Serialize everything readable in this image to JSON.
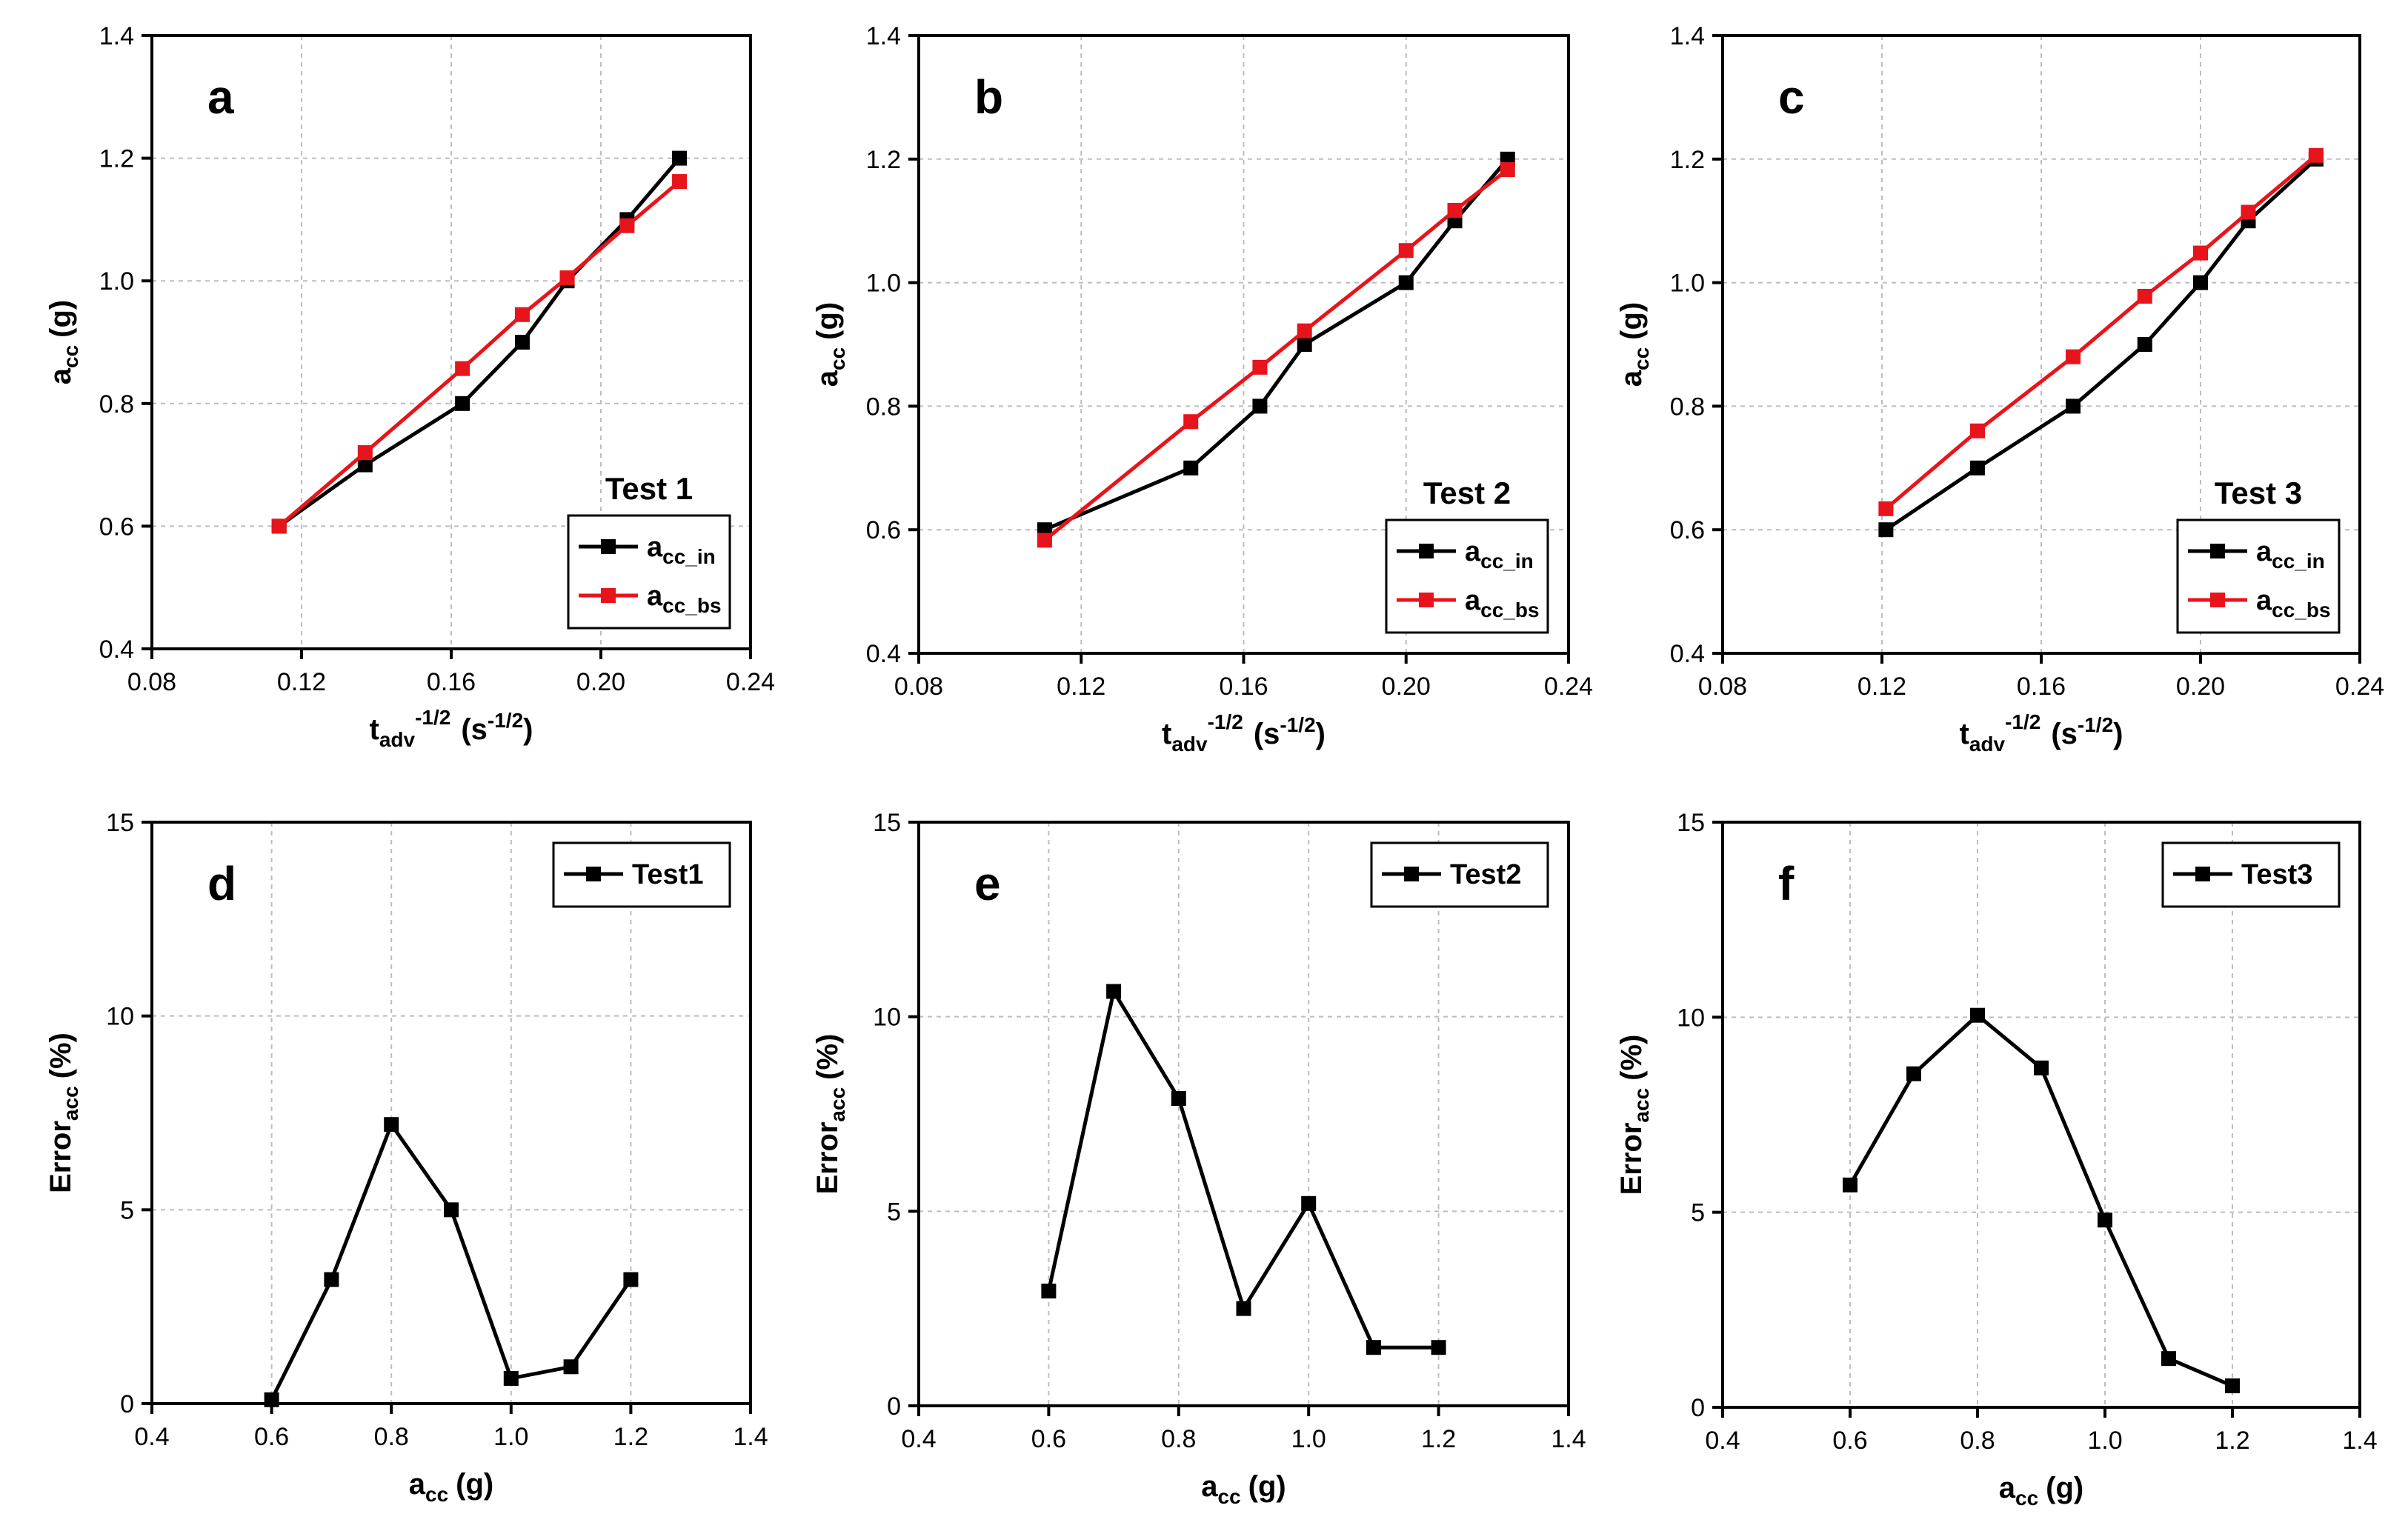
{
  "colors": {
    "series_in": "#000000",
    "series_bs": "#e8141b",
    "grid": "#bdbdbd",
    "axis": "#000000"
  },
  "chart_data": [
    {
      "id": "a",
      "type": "line",
      "panel_letter": "a",
      "annotation": "Test 1",
      "xlabel": "t",
      "xlabel_sub": "adv",
      "xlabel_sup": "-1/2",
      "xlabel_unit": "(s",
      "xlabel_unit_sup": "-1/2",
      "xlabel_unit_end": ")",
      "ylabel": "a",
      "ylabel_sub": "cc",
      "ylabel_unit": "(g)",
      "xlim": [
        0.08,
        0.24
      ],
      "ylim": [
        0.4,
        1.4
      ],
      "xticks": [
        "0.08",
        "0.12",
        "0.16",
        "0.20",
        "0.24"
      ],
      "yticks": [
        "0.4",
        "0.6",
        "0.8",
        "1.0",
        "1.2",
        "1.4"
      ],
      "grid": true,
      "legend_position": "bottom-right",
      "series": [
        {
          "name": "a",
          "name_sub": "cc_in",
          "color": "#000000",
          "x": [
            0.114,
            0.137,
            0.163,
            0.179,
            0.191,
            0.207,
            0.221
          ],
          "y": [
            0.6,
            0.7,
            0.8,
            0.9,
            1.0,
            1.1,
            1.2
          ]
        },
        {
          "name": "a",
          "name_sub": "cc_bs",
          "color": "#e8141b",
          "x": [
            0.114,
            0.137,
            0.163,
            0.179,
            0.191,
            0.207,
            0.221
          ],
          "y": [
            0.6,
            0.72,
            0.857,
            0.945,
            1.005,
            1.09,
            1.162
          ]
        }
      ]
    },
    {
      "id": "b",
      "type": "line",
      "panel_letter": "b",
      "annotation": "Test 2",
      "xlabel": "t",
      "xlabel_sub": "adv",
      "xlabel_sup": "-1/2",
      "xlabel_unit": "(s",
      "xlabel_unit_sup": "-1/2",
      "xlabel_unit_end": ")",
      "ylabel": "a",
      "ylabel_sub": "cc",
      "ylabel_unit": "(g)",
      "xlim": [
        0.08,
        0.24
      ],
      "ylim": [
        0.4,
        1.4
      ],
      "xticks": [
        "0.08",
        "0.12",
        "0.16",
        "0.20",
        "0.24"
      ],
      "yticks": [
        "0.4",
        "0.6",
        "0.8",
        "1.0",
        "1.2",
        "1.4"
      ],
      "grid": true,
      "legend_position": "bottom-right",
      "series": [
        {
          "name": "a",
          "name_sub": "cc_in",
          "color": "#000000",
          "x": [
            0.111,
            0.147,
            0.164,
            0.175,
            0.2,
            0.212,
            0.225
          ],
          "y": [
            0.6,
            0.7,
            0.8,
            0.9,
            1.0,
            1.1,
            1.2
          ]
        },
        {
          "name": "a",
          "name_sub": "cc_bs",
          "color": "#e8141b",
          "x": [
            0.111,
            0.147,
            0.164,
            0.175,
            0.2,
            0.212,
            0.225
          ],
          "y": [
            0.583,
            0.775,
            0.863,
            0.922,
            1.052,
            1.117,
            1.183
          ]
        }
      ]
    },
    {
      "id": "c",
      "type": "line",
      "panel_letter": "c",
      "annotation": "Test 3",
      "xlabel": "t",
      "xlabel_sub": "adv",
      "xlabel_sup": "-1/2",
      "xlabel_unit": "(s",
      "xlabel_unit_sup": "-1/2",
      "xlabel_unit_end": ")",
      "ylabel": "a",
      "ylabel_sub": "cc",
      "ylabel_unit": "(g)",
      "xlim": [
        0.08,
        0.24
      ],
      "ylim": [
        0.4,
        1.4
      ],
      "xticks": [
        "0.08",
        "0.12",
        "0.16",
        "0.20",
        "0.24"
      ],
      "yticks": [
        "0.4",
        "0.6",
        "0.8",
        "1.0",
        "1.2",
        "1.4"
      ],
      "grid": true,
      "legend_position": "bottom-right",
      "series": [
        {
          "name": "a",
          "name_sub": "cc_in",
          "color": "#000000",
          "x": [
            0.121,
            0.144,
            0.168,
            0.186,
            0.2,
            0.212,
            0.229
          ],
          "y": [
            0.6,
            0.7,
            0.8,
            0.9,
            1.0,
            1.1,
            1.2
          ]
        },
        {
          "name": "a",
          "name_sub": "cc_bs",
          "color": "#e8141b",
          "x": [
            0.121,
            0.144,
            0.168,
            0.186,
            0.2,
            0.212,
            0.229
          ],
          "y": [
            0.634,
            0.76,
            0.88,
            0.978,
            1.048,
            1.114,
            1.206
          ]
        }
      ]
    },
    {
      "id": "d",
      "type": "line",
      "panel_letter": "d",
      "xlabel": "a",
      "xlabel_sub": "cc",
      "xlabel_unit": "(g)",
      "ylabel": "Error",
      "ylabel_sub": "acc",
      "ylabel_unit": "(%)",
      "xlim": [
        0.4,
        1.4
      ],
      "ylim": [
        0,
        15
      ],
      "xticks": [
        "0.4",
        "0.6",
        "0.8",
        "1.0",
        "1.2",
        "1.4"
      ],
      "yticks": [
        "0",
        "5",
        "10",
        "15"
      ],
      "grid": true,
      "legend_position": "top-right",
      "series": [
        {
          "name": "Test1",
          "color": "#000000",
          "x": [
            0.6,
            0.7,
            0.8,
            0.9,
            1.0,
            1.1,
            1.2
          ],
          "y": [
            0.1,
            3.2,
            7.2,
            5.0,
            0.65,
            0.95,
            3.2
          ]
        }
      ]
    },
    {
      "id": "e",
      "type": "line",
      "panel_letter": "e",
      "xlabel": "a",
      "xlabel_sub": "cc",
      "xlabel_unit": "(g)",
      "ylabel": "Error",
      "ylabel_sub": "acc",
      "ylabel_unit": "(%)",
      "xlim": [
        0.4,
        1.4
      ],
      "ylim": [
        0,
        15
      ],
      "xticks": [
        "0.4",
        "0.6",
        "0.8",
        "1.0",
        "1.2",
        "1.4"
      ],
      "yticks": [
        "0",
        "5",
        "10",
        "15"
      ],
      "grid": true,
      "legend_position": "top-right",
      "series": [
        {
          "name": "Test2",
          "color": "#000000",
          "x": [
            0.6,
            0.7,
            0.8,
            0.9,
            1.0,
            1.1,
            1.2
          ],
          "y": [
            2.95,
            10.65,
            7.9,
            2.5,
            5.2,
            1.5,
            1.5
          ]
        }
      ]
    },
    {
      "id": "f",
      "type": "line",
      "panel_letter": "f",
      "xlabel": "a",
      "xlabel_sub": "cc",
      "xlabel_unit": "(g)",
      "ylabel": "Error",
      "ylabel_sub": "acc",
      "ylabel_unit": "(%)",
      "xlim": [
        0.4,
        1.4
      ],
      "ylim": [
        0,
        15
      ],
      "xticks": [
        "0.4",
        "0.6",
        "0.8",
        "1.0",
        "1.2",
        "1.4"
      ],
      "yticks": [
        "0",
        "5",
        "10",
        "15"
      ],
      "grid": true,
      "legend_position": "top-right",
      "series": [
        {
          "name": "Test3",
          "color": "#000000",
          "x": [
            0.6,
            0.7,
            0.8,
            0.9,
            1.0,
            1.1,
            1.2
          ],
          "y": [
            5.7,
            8.55,
            10.05,
            8.7,
            4.8,
            1.25,
            0.55
          ]
        }
      ]
    }
  ]
}
